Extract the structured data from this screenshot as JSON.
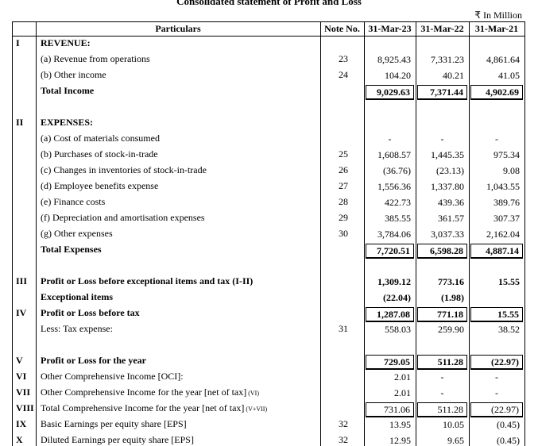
{
  "header": {
    "title": "Consolidated statement of Profit and Loss",
    "unit": "₹ In Million"
  },
  "table": {
    "columns": [
      "Particulars",
      "Note No.",
      "31-Mar-23",
      "31-Mar-22",
      "31-Mar-21"
    ],
    "rows": [
      {
        "num": "I",
        "label": "REVENUE:",
        "bold": true
      },
      {
        "label": "(a) Revenue from operations",
        "note": "23",
        "values": [
          "8,925.43",
          "7,331.23",
          "4,861.64"
        ]
      },
      {
        "label": "(b) Other income",
        "note": "24",
        "values": [
          "104.20",
          "40.21",
          "41.05"
        ]
      },
      {
        "label": "Total Income",
        "bold": true,
        "boxed": true,
        "values": [
          "9,029.63",
          "7,371.44",
          "4,902.69"
        ]
      },
      {
        "num": "II",
        "label": "EXPENSES:",
        "bold": true
      },
      {
        "label": "(a) Cost of materials consumed",
        "values": [
          "-",
          "-",
          "-"
        ]
      },
      {
        "label": "(b) Purchases of stock-in-trade",
        "note": "25",
        "values": [
          "1,608.57",
          "1,445.35",
          "975.34"
        ]
      },
      {
        "label": "(c) Changes in inventories of stock-in-trade",
        "note": "26",
        "values": [
          "(36.76)",
          "(23.13)",
          "9.08"
        ]
      },
      {
        "label": "(d) Employee benefits expense",
        "note": "27",
        "values": [
          "1,556.36",
          "1,337.80",
          "1,043.55"
        ]
      },
      {
        "label": "(e) Finance costs",
        "note": "28",
        "values": [
          "422.73",
          "439.36",
          "389.76"
        ]
      },
      {
        "label": "(f) Depreciation and amortisation expenses",
        "note": "29",
        "values": [
          "385.55",
          "361.57",
          "307.37"
        ]
      },
      {
        "label": "(g) Other expenses",
        "note": "30",
        "values": [
          "3,784.06",
          "3,037.33",
          "2,162.04"
        ]
      },
      {
        "label": "Total Expenses",
        "bold": true,
        "boxed": true,
        "values": [
          "7,720.51",
          "6,598.28",
          "4,887.14"
        ]
      },
      {
        "num": "III",
        "label": "Profit or Loss before exceptional items and tax (I-II)",
        "bold": true,
        "values": [
          "1,309.12",
          "773.16",
          "15.55"
        ]
      },
      {
        "label": "Exceptional items",
        "bold": true,
        "values": [
          "(22.04)",
          "(1.98)"
        ]
      },
      {
        "num": "IV",
        "label": "Profit or Loss before tax",
        "bold": true,
        "boxed": true,
        "values": [
          "1,287.08",
          "771.18",
          "15.55"
        ]
      },
      {
        "label": "Less: Tax expense:",
        "note": "31",
        "values": [
          "558.03",
          "259.90",
          "38.52"
        ]
      },
      {
        "num": "V",
        "label": "Profit or Loss for the year",
        "bold": true,
        "boxed": true,
        "values": [
          "729.05",
          "511.28",
          "(22.97)"
        ]
      },
      {
        "num": "VI",
        "label": "Other Comprehensive Income [OCI]:",
        "values": [
          "2.01",
          "-",
          "-"
        ]
      },
      {
        "num": "VII",
        "label": "Other Comprehensive Income for the year [net of tax]",
        "suffix": "(VI)",
        "values": [
          "2.01",
          "-",
          "-"
        ]
      },
      {
        "num": "VIII",
        "label": "Total Comprehensive Income for the year [net of tax]",
        "suffix": "(V+VII)",
        "boxed": true,
        "values": [
          "731.06",
          "511.28",
          "(22.97)"
        ]
      },
      {
        "num": "IX",
        "label": "Basic Earnings per equity share [EPS]",
        "note": "32",
        "values": [
          "13.95",
          "10.05",
          "(0.45)"
        ]
      },
      {
        "num": "X",
        "label": "Diluted Earnings per equity share [EPS]",
        "note": "32",
        "values": [
          "12.95",
          "9.65",
          "(0.45)"
        ]
      }
    ]
  }
}
